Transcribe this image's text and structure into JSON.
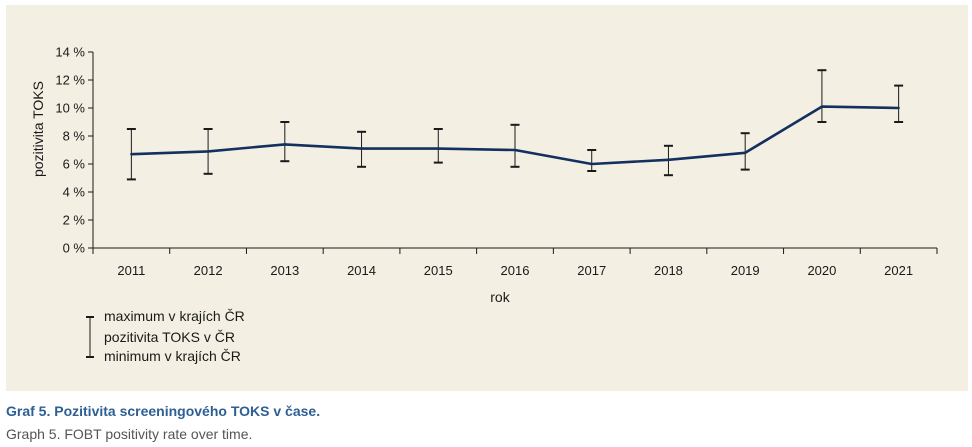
{
  "chart_data": {
    "type": "line",
    "title": "",
    "xlabel": "rok",
    "ylabel": "pozitivita TOKS",
    "ylim": [
      0,
      14
    ],
    "yticks": [
      "0 %",
      "2 %",
      "4 %",
      "6 %",
      "8 %",
      "10 %",
      "12 %",
      "14 %"
    ],
    "categories": [
      "2011",
      "2012",
      "2013",
      "2014",
      "2015",
      "2016",
      "2017",
      "2018",
      "2019",
      "2020",
      "2021"
    ],
    "series": [
      {
        "name": "pozitivita TOKS v ČR",
        "values": [
          6.7,
          6.9,
          7.4,
          7.1,
          7.1,
          7.0,
          6.0,
          6.3,
          6.8,
          10.1,
          10.0
        ]
      },
      {
        "name": "maximum v krajích ČR",
        "values": [
          8.5,
          8.5,
          9.0,
          8.3,
          8.5,
          8.8,
          7.0,
          7.3,
          8.2,
          12.7,
          11.6
        ]
      },
      {
        "name": "minimum v krajích ČR",
        "values": [
          4.9,
          5.3,
          6.2,
          5.8,
          6.1,
          5.8,
          5.5,
          5.2,
          5.6,
          9.0,
          9.0
        ]
      }
    ],
    "grid": false,
    "legend_position": "bottom-left",
    "colors": {
      "line": "#13305e",
      "errorbar": "#1a1a1a",
      "panel": "#f4efe3"
    }
  },
  "caption": {
    "cs": "Graf 5. Pozitivita screeningového TOKS v čase.",
    "en": "Graph 5. FOBT positivity rate over time."
  }
}
